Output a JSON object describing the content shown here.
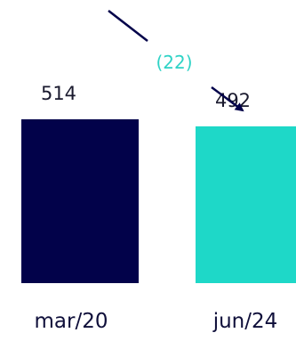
{
  "chart_data": {
    "type": "bar",
    "categories": [
      "mar/20",
      "jun/24"
    ],
    "values": [
      514,
      492
    ],
    "difference": {
      "label": "(22)",
      "value": -22
    },
    "colors": {
      "bars": [
        "#02024a",
        "#1ed8c8"
      ],
      "difference_label": "#2fd3c6",
      "arrow": "#02024a"
    },
    "title": "",
    "xlabel": "",
    "ylabel": "",
    "ylim": [
      0,
      514
    ],
    "grid": false,
    "legend": "none"
  }
}
